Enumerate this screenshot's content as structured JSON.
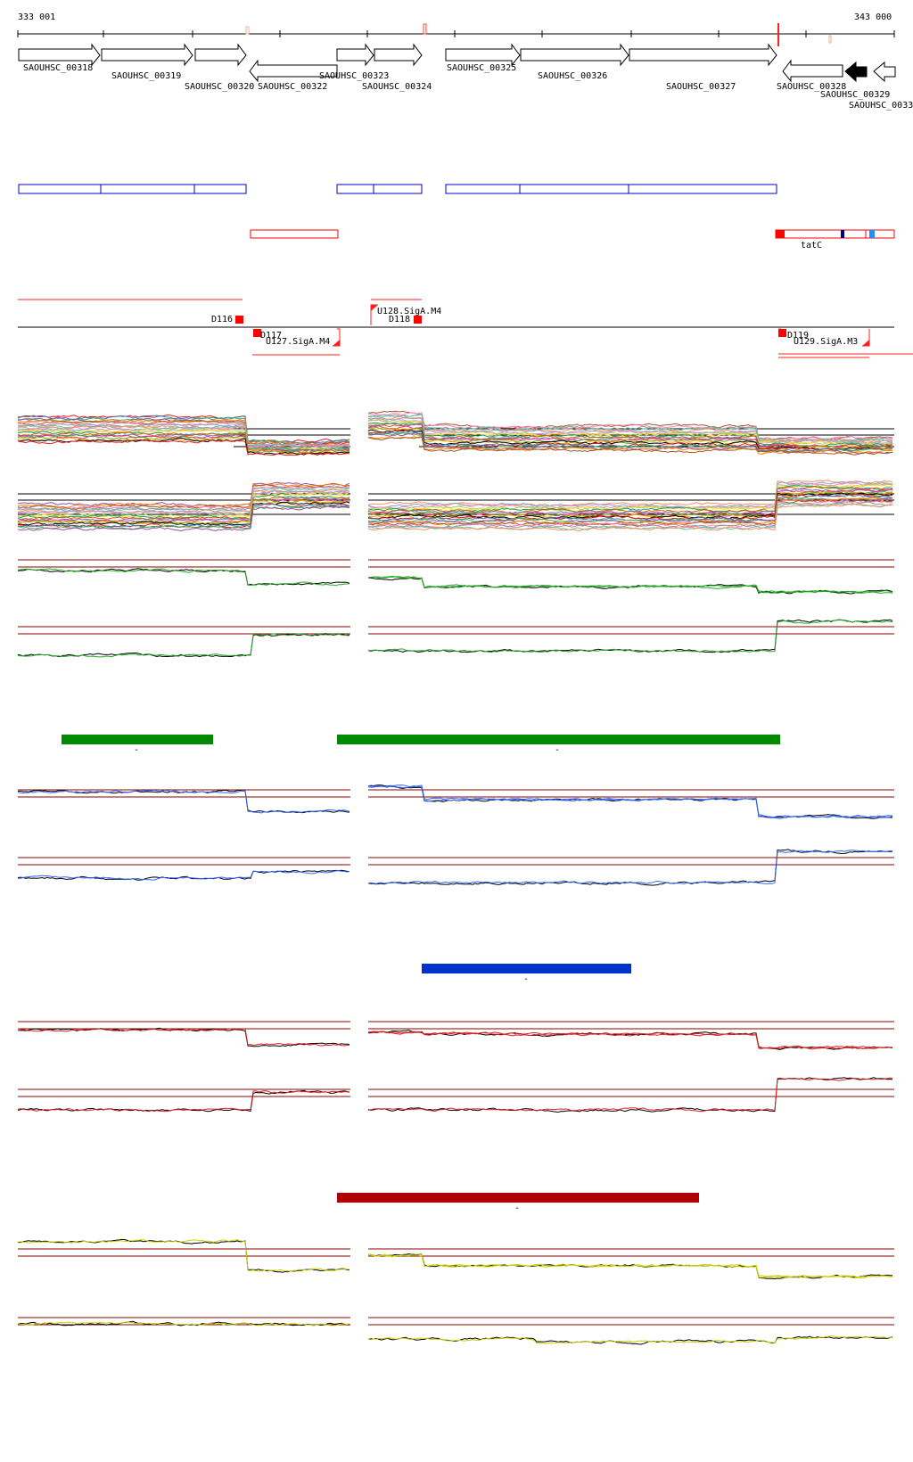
{
  "ruler": {
    "start_label": "333 001",
    "end_label": "343 000"
  },
  "genes": [
    {
      "id": "g318",
      "label": "SAOUHSC_00318",
      "strand": "+"
    },
    {
      "id": "g319",
      "label": "SAOUHSC_00319",
      "strand": "+"
    },
    {
      "id": "g320",
      "label": "SAOUHSC_00320",
      "strand": "+"
    },
    {
      "id": "g322",
      "label": "SAOUHSC_00322",
      "strand": "-"
    },
    {
      "id": "g323",
      "label": "SAOUHSC_00323",
      "strand": "+"
    },
    {
      "id": "g324",
      "label": "SAOUHSC_00324",
      "strand": "+"
    },
    {
      "id": "g325",
      "label": "SAOUHSC_00325",
      "strand": "+"
    },
    {
      "id": "g326",
      "label": "SAOUHSC_00326",
      "strand": "+"
    },
    {
      "id": "g327",
      "label": "SAOUHSC_00327",
      "strand": "+"
    },
    {
      "id": "g328",
      "label": "SAOUHSC_00328",
      "strand": "-"
    },
    {
      "id": "g329",
      "label": "SAOUHSC_00329",
      "strand": "-"
    },
    {
      "id": "g33x",
      "label": "SAOUHSC_0033",
      "strand": "-"
    }
  ],
  "feature_labels": {
    "tatc": "tatC",
    "d116": "D116",
    "d117": "D117",
    "d118": "D118",
    "d119": "D119",
    "u127": "U127.SigA.M4",
    "u128": "U128.SigA.M4",
    "u129": "U129.SigA.M3"
  },
  "condition_bars": [
    {
      "id": "green",
      "color": "#008a00",
      "caption": "-"
    },
    {
      "id": "blue",
      "color": "#0033cc",
      "caption": "-"
    },
    {
      "id": "red",
      "color": "#b30000",
      "caption": "-"
    }
  ],
  "colors": {
    "gene_box": "#0000cc",
    "feature_red": "#ff0000",
    "threshold": "#8b0000",
    "green_trace": "#22aa22",
    "blue_trace": "#3366ff",
    "red_trace": "#dd2222",
    "yellow_trace": "#c8d200"
  }
}
